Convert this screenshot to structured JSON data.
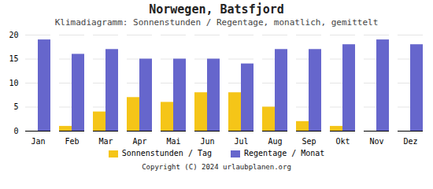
{
  "chart_data": {
    "type": "bar",
    "title": "Norwegen, Batsfjord",
    "subtitle": "Klimadiagramm: Sonnenstunden / Regentage, monatlich, gemittelt",
    "categories": [
      "Jan",
      "Feb",
      "Mar",
      "Apr",
      "Mai",
      "Jun",
      "Jul",
      "Aug",
      "Sep",
      "Okt",
      "Nov",
      "Dez"
    ],
    "series": [
      {
        "name": "Sonnenstunden / Tag",
        "color": "#f5c518",
        "values": [
          0,
          1,
          4,
          7,
          6,
          8,
          8,
          5,
          2,
          1,
          0,
          0
        ]
      },
      {
        "name": "Regentage / Monat",
        "color": "#6666cc",
        "values": [
          19,
          16,
          17,
          15,
          15,
          15,
          14,
          17,
          17,
          18,
          19,
          18
        ]
      }
    ],
    "ylim": [
      0,
      20
    ],
    "yticks": [
      0,
      5,
      10,
      15,
      20
    ],
    "grid": true,
    "legend": "bottom",
    "annotations": [
      "Copyright (C) 2024 urlaubplanen.org"
    ]
  }
}
